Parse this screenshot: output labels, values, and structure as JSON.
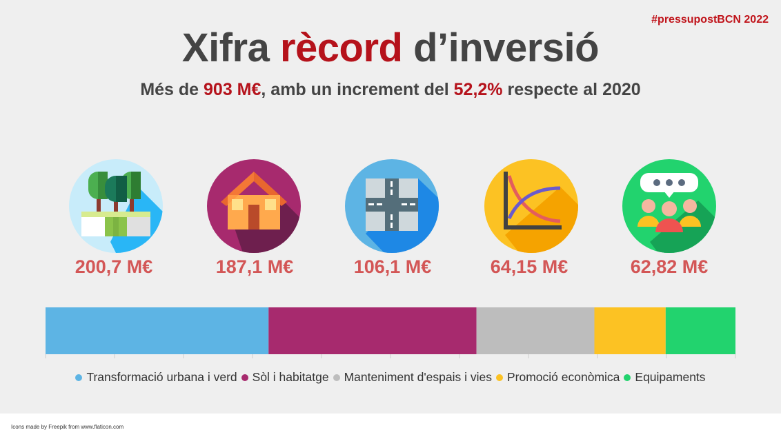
{
  "hashtag": "#pressupostBCN 2022",
  "title": {
    "part1": "Xifra ",
    "highlight": "rècord",
    "part2": " d’inversió"
  },
  "subtitle": {
    "pre": "Més de ",
    "amount": "903 M€",
    "mid": ", amb un increment del ",
    "percent": "52,2%",
    "post": " respecte al 2020"
  },
  "icons": [
    "trees-park-icon",
    "house-icon",
    "road-crossing-icon",
    "economic-curve-chart-icon",
    "people-meeting-icon"
  ],
  "amounts": [
    "200,7 M€",
    "187,1 M€",
    "106,1 M€",
    "64,15 M€",
    "62,82 M€"
  ],
  "chart_data": {
    "type": "bar",
    "orientation": "horizontal-stacked",
    "unit": "M€",
    "series": [
      {
        "name": "Transformació urbana i verd",
        "value": 200.7,
        "color": "#5db4e4"
      },
      {
        "name": "Sòl i habitatge",
        "value": 187.1,
        "color": "#a72a6e"
      },
      {
        "name": "Manteniment d'espais i vies",
        "value": 106.1,
        "color": "#bdbdbd"
      },
      {
        "name": "Promoció econòmica",
        "value": 64.15,
        "color": "#fcc223"
      },
      {
        "name": "Equipaments",
        "value": 62.82,
        "color": "#22d36e"
      }
    ],
    "legend_position": "bottom",
    "grid": false
  },
  "footer": "Icons made by Freepik from www.flaticon.com"
}
